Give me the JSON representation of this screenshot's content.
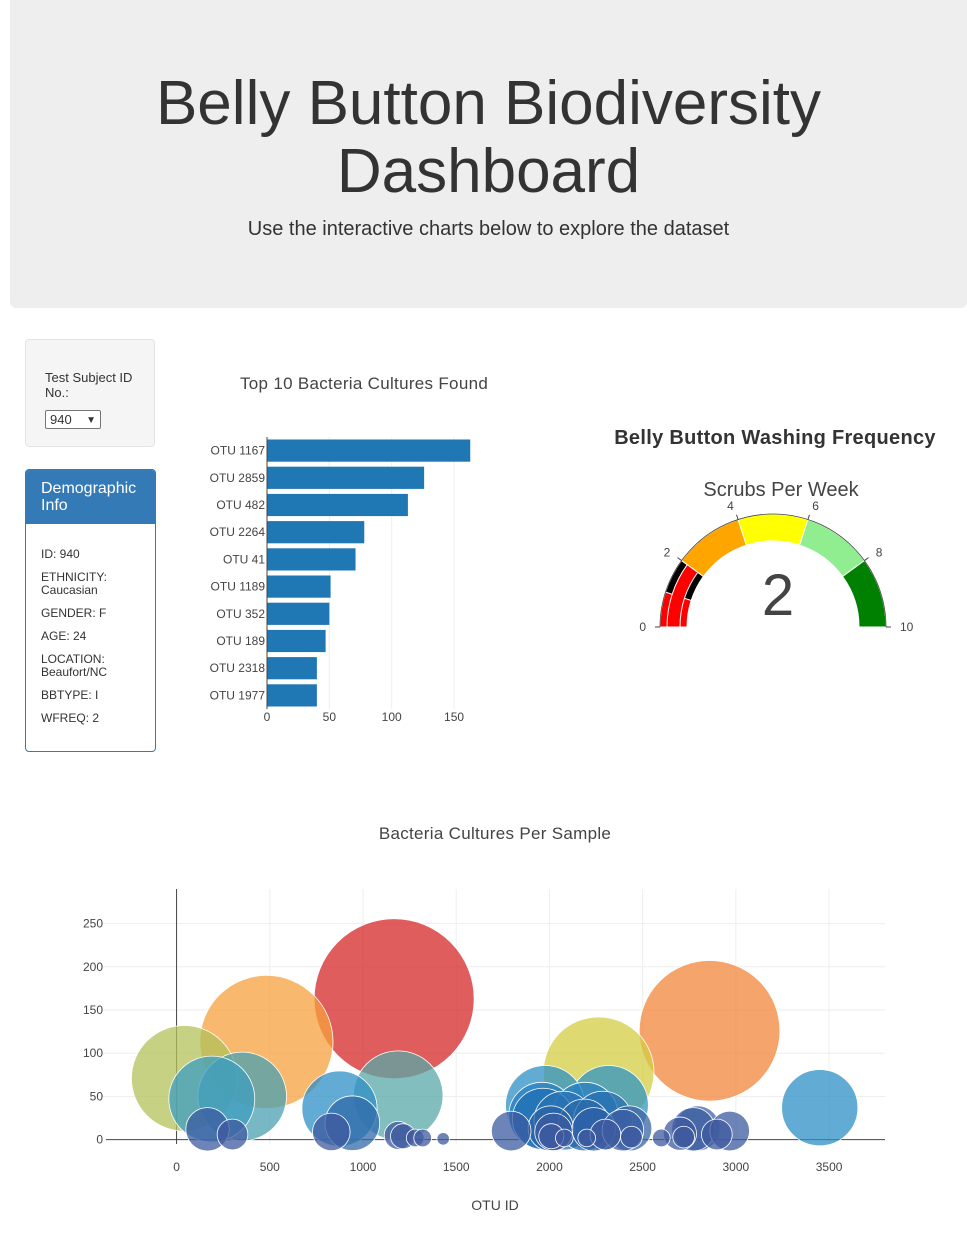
{
  "header": {
    "title_line1": "Belly Button Biodiversity",
    "title_line2": "Dashboard",
    "subtitle": "Use the interactive charts below to explore the dataset"
  },
  "selector": {
    "label": "Test Subject ID No.:",
    "value": "940"
  },
  "demographic": {
    "heading": "Demographic Info",
    "rows": [
      "ID: 940",
      "ETHNICITY: Caucasian",
      "GENDER: F",
      "AGE: 24",
      "LOCATION: Beaufort/NC",
      "BBTYPE: I",
      "WFREQ: 2"
    ]
  },
  "chart_data": [
    {
      "type": "bar",
      "orientation": "horizontal",
      "title": "Top 10 Bacteria Cultures Found",
      "categories": [
        "OTU 1167",
        "OTU 2859",
        "OTU 482",
        "OTU 2264",
        "OTU 41",
        "OTU 1189",
        "OTU 352",
        "OTU 189",
        "OTU 2318",
        "OTU 1977"
      ],
      "values": [
        163,
        126,
        113,
        78,
        71,
        51,
        50,
        47,
        40,
        40
      ],
      "xlim": [
        0,
        166
      ],
      "xticks": [
        0,
        50,
        100,
        150
      ],
      "color": "#1f77b4",
      "grid": true
    },
    {
      "type": "gauge",
      "title": "Belly Button Washing Frequency",
      "subtitle": "Scrubs Per Week",
      "value": 2,
      "range": [
        0,
        10
      ],
      "ticks": [
        0,
        2,
        4,
        6,
        8,
        10
      ],
      "steps": [
        {
          "range": [
            0,
            1
          ],
          "color": "#ff0000"
        },
        {
          "range": [
            1,
            2
          ],
          "color": "#000000"
        },
        {
          "range": [
            2,
            4
          ],
          "color": "#ffa500"
        },
        {
          "range": [
            4,
            6
          ],
          "color": "#ffff00"
        },
        {
          "range": [
            6,
            8
          ],
          "color": "#90ee90"
        },
        {
          "range": [
            8,
            10
          ],
          "color": "#008000"
        }
      ],
      "bar_color": "#ff0000"
    },
    {
      "type": "scatter",
      "mode": "bubble",
      "title": "Bacteria Cultures Per Sample",
      "xlabel": "OTU ID",
      "ylabel": "",
      "xlim": [
        -400,
        3800
      ],
      "ylim": [
        -5,
        290
      ],
      "xticks": [
        0,
        500,
        1000,
        1500,
        2000,
        2500,
        3000,
        3500
      ],
      "yticks": [
        0,
        50,
        100,
        150,
        200,
        250
      ],
      "grid": true,
      "points": [
        {
          "x": 1167,
          "y": 163,
          "color": "#d62728"
        },
        {
          "x": 2859,
          "y": 126,
          "color": "#f2853a"
        },
        {
          "x": 482,
          "y": 113,
          "color": "#f5a13d"
        },
        {
          "x": 2264,
          "y": 78,
          "color": "#d4cc42"
        },
        {
          "x": 41,
          "y": 71,
          "color": "#b3c15a"
        },
        {
          "x": 1189,
          "y": 51,
          "color": "#5aa8a8"
        },
        {
          "x": 352,
          "y": 50,
          "color": "#4aa0b0"
        },
        {
          "x": 189,
          "y": 47,
          "color": "#3d9ec0"
        },
        {
          "x": 2318,
          "y": 40,
          "color": "#3094c6"
        },
        {
          "x": 1977,
          "y": 40,
          "color": "#2d90c6"
        },
        {
          "x": 3450,
          "y": 37,
          "color": "#2e8fc5"
        },
        {
          "x": 874,
          "y": 36,
          "color": "#2e8fc5"
        },
        {
          "x": 1960,
          "y": 28,
          "color": "#2a7fbf"
        },
        {
          "x": 2191,
          "y": 28,
          "color": "#2a7fbf"
        },
        {
          "x": 1966,
          "y": 24,
          "color": "#1f6fb5"
        },
        {
          "x": 2075,
          "y": 22,
          "color": "#2a73b3"
        },
        {
          "x": 2287,
          "y": 22,
          "color": "#2a6fb3"
        },
        {
          "x": 943,
          "y": 19,
          "color": "#3069aa"
        },
        {
          "x": 2186,
          "y": 17,
          "color": "#2b69aa"
        },
        {
          "x": 2007,
          "y": 13,
          "color": "#2b62a5"
        },
        {
          "x": 2428,
          "y": 13,
          "color": "#3a64a6"
        },
        {
          "x": 2794,
          "y": 13,
          "color": "#4063a6"
        },
        {
          "x": 2238,
          "y": 12,
          "color": "#2d5fa5"
        },
        {
          "x": 2394,
          "y": 11,
          "color": "#3a5fa5"
        },
        {
          "x": 166,
          "y": 12,
          "color": "#3b5ba0"
        },
        {
          "x": 2772,
          "y": 12,
          "color": "#3b5ba0"
        },
        {
          "x": 2967,
          "y": 10,
          "color": "#3b5ba0"
        },
        {
          "x": 1795,
          "y": 10,
          "color": "#3b5ba0"
        },
        {
          "x": 830,
          "y": 9,
          "color": "#3f5a9f"
        },
        {
          "x": 2022,
          "y": 9,
          "color": "#3b5ba0"
        },
        {
          "x": 2700,
          "y": 7,
          "color": "#3f5a9f"
        },
        {
          "x": 2898,
          "y": 6,
          "color": "#3f5a9f"
        },
        {
          "x": 300,
          "y": 6,
          "color": "#3f5a9f"
        },
        {
          "x": 2300,
          "y": 6,
          "color": "#3f5a9f"
        },
        {
          "x": 1189,
          "y": 5,
          "color": "#3f5a9f"
        },
        {
          "x": 1215,
          "y": 4,
          "color": "#3f5a9f"
        },
        {
          "x": 2010,
          "y": 4,
          "color": "#3f5a9f"
        },
        {
          "x": 2720,
          "y": 3,
          "color": "#3f5a9f"
        },
        {
          "x": 1280,
          "y": 2,
          "color": "#3f5a9f"
        },
        {
          "x": 1320,
          "y": 2,
          "color": "#3f5a9f"
        },
        {
          "x": 2440,
          "y": 3,
          "color": "#3f5a9f"
        },
        {
          "x": 2080,
          "y": 2,
          "color": "#3f5a9f"
        },
        {
          "x": 2200,
          "y": 2,
          "color": "#3f5a9f"
        },
        {
          "x": 2600,
          "y": 2,
          "color": "#3f5a9f"
        },
        {
          "x": 1430,
          "y": 1,
          "color": "#3f5a9f"
        }
      ]
    }
  ]
}
